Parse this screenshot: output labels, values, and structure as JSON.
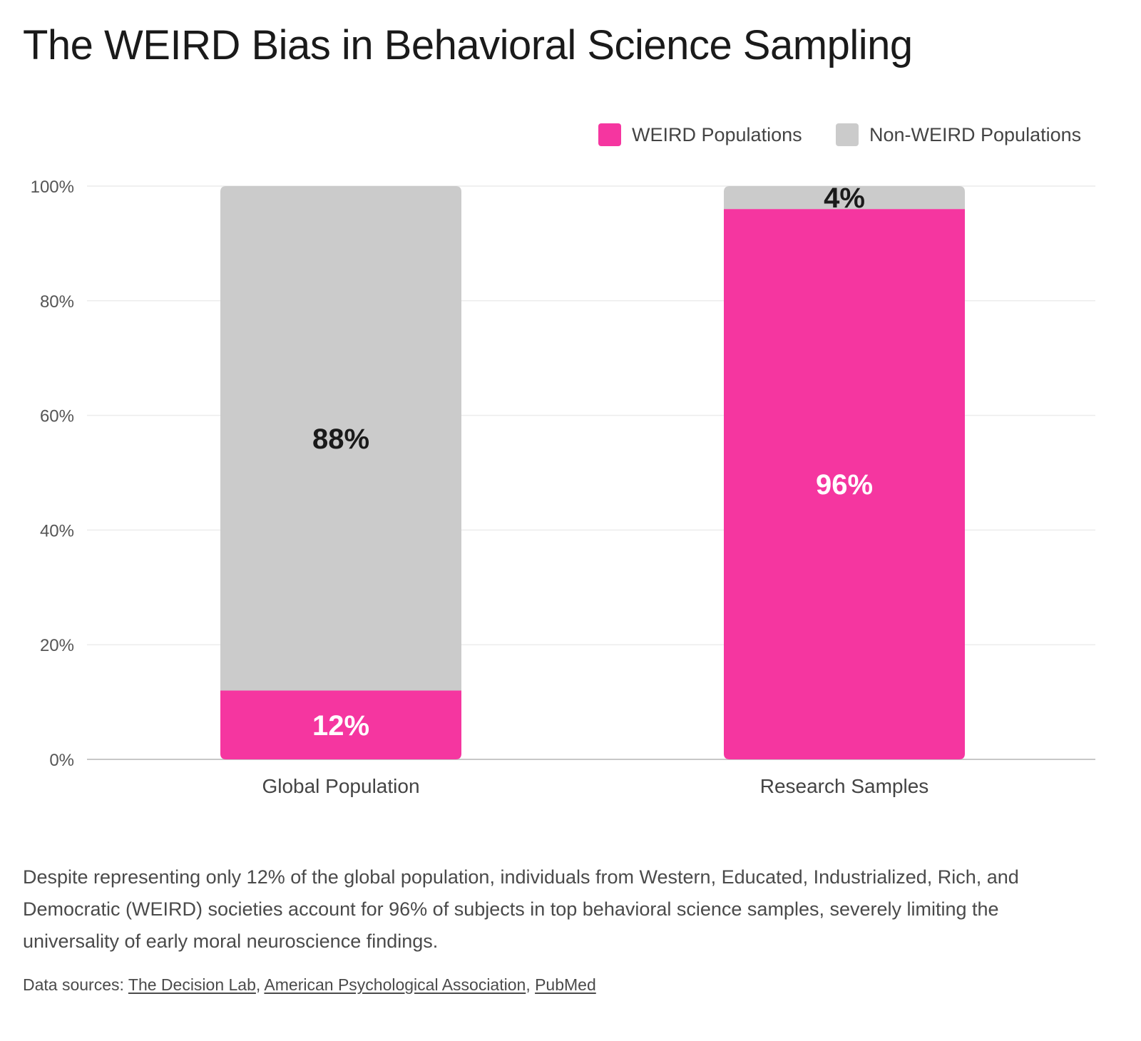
{
  "title": "The WEIRD Bias in Behavioral Science Sampling",
  "caption": "Despite representing only 12% of the global population, individuals from Western, Educated, Industrialized, Rich, and Democratic (WEIRD) societies account for 96% of subjects in top behavioral science samples, severely limiting the universality of early moral neuroscience findings.",
  "sources": {
    "label": "Data sources:",
    "links": [
      "The Decision Lab",
      "American Psychological Association",
      "PubMed"
    ]
  },
  "colors": {
    "weird": "#f536a0",
    "non_weird": "#cbcbcb",
    "grid": "#ececec",
    "axis": "#c8c8c8",
    "tick_text": "#555555"
  },
  "chart_data": {
    "type": "bar",
    "stacked": true,
    "categories": [
      "Global Population",
      "Research Samples"
    ],
    "series": [
      {
        "name": "WEIRD Populations",
        "values": [
          12,
          96
        ],
        "labels": [
          "12%",
          "96%"
        ]
      },
      {
        "name": "Non-WEIRD Populations",
        "values": [
          88,
          4
        ],
        "labels": [
          "88%",
          "4%"
        ]
      }
    ],
    "ylim": [
      0,
      100
    ],
    "yticks": [
      0,
      20,
      40,
      60,
      80,
      100
    ],
    "ytick_labels": [
      "0%",
      "20%",
      "40%",
      "60%",
      "80%",
      "100%"
    ],
    "grid": true,
    "legend_position": "top-right"
  }
}
